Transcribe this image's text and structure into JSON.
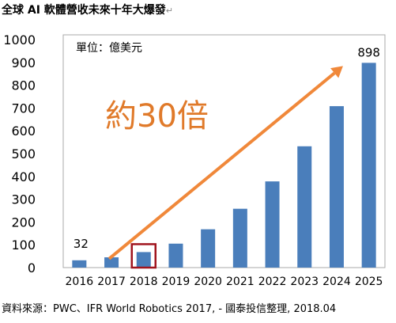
{
  "title": "全球 AI 軟體營收未來十年大爆發",
  "title_mark": "↵",
  "source": "資料來源：PWC、IFR World Robotics 2017, - 國泰投信整理, 2018.04",
  "chart_data": {
    "type": "bar",
    "categories": [
      "2016",
      "2017",
      "2018",
      "2019",
      "2020",
      "2021",
      "2022",
      "2023",
      "2024",
      "2025"
    ],
    "values": [
      32,
      45,
      68,
      105,
      168,
      258,
      378,
      532,
      708,
      898
    ],
    "ylim": [
      0,
      1000
    ],
    "yticks": [
      0,
      100,
      200,
      300,
      400,
      500,
      600,
      700,
      800,
      900,
      1000
    ],
    "unit_label": "單位：億美元",
    "annotation": "約30倍",
    "first_label": "32",
    "last_label": "898",
    "highlight_category": "2018",
    "colors": {
      "bar": "#4a7ebb",
      "arrow": "#f0883a",
      "annotation": "#e07a2a",
      "highlight": "#a0141e",
      "border": "#aaaaaa"
    },
    "grid": false
  }
}
